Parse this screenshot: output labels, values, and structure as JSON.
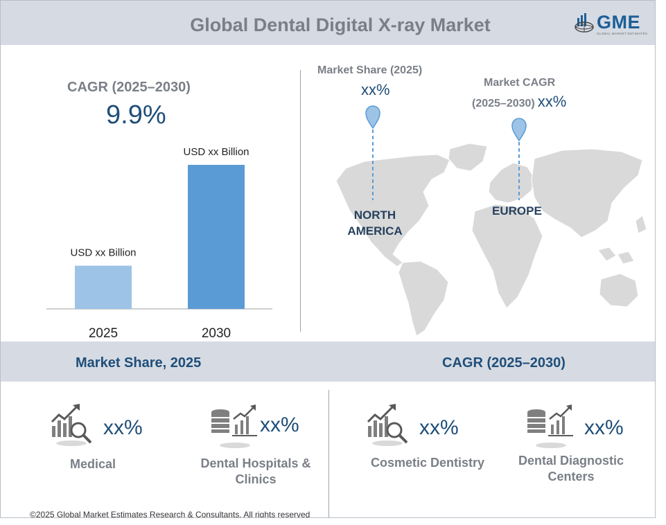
{
  "header": {
    "title": "Global Dental Digital X-ray Market",
    "logo_text": "GME",
    "logo_subtext": "GLOBAL MARKET ESTIMATES"
  },
  "cagr_block": {
    "label": "CAGR (2025–2030)",
    "value": "9.9%"
  },
  "chart_data": {
    "type": "bar",
    "categories": [
      "2025",
      "2030"
    ],
    "values": [
      0.3,
      1.0
    ],
    "value_labels": [
      "USD xx Billion",
      "USD xx Billion"
    ],
    "ylim": [
      0,
      1
    ],
    "grid": false,
    "colors": [
      "#9dc3e6",
      "#5b9bd5"
    ]
  },
  "map_block": {
    "market_share_label": "Market Share (2025)",
    "market_share_value": "xx%",
    "market_cagr_label_line1": "Market CAGR",
    "market_cagr_label_line2": "(2025–2030)",
    "market_cagr_value": "xx%",
    "regions": [
      "NORTH AMERICA",
      "EUROPE"
    ],
    "region_na_line1": "NORTH",
    "region_na_line2": "AMERICA",
    "region_eu": "EUROPE",
    "map_color": "#d9d9d9",
    "pin_color": "#9dc3e6"
  },
  "bottom": {
    "market_share_heading": "Market Share, 2025",
    "cagr_heading": "CAGR (2025–2030)",
    "segments": [
      {
        "value": "xx%",
        "line1": "Medical",
        "line2": "",
        "icon": "chart-magnifier-icon"
      },
      {
        "value": "xx%",
        "line1": "Dental Hospitals &",
        "line2": "Clinics",
        "icon": "coins-chart-icon"
      },
      {
        "value": "xx%",
        "line1": "Cosmetic Dentistry",
        "line2": "",
        "icon": "chart-magnifier-icon"
      },
      {
        "value": "xx%",
        "line1": "Dental Diagnostic",
        "line2": "Centers",
        "icon": "coins-chart-icon"
      }
    ]
  },
  "footer": {
    "copyright": "©2025 Global Market Estimates Research & Consultants, All rights reserved"
  }
}
